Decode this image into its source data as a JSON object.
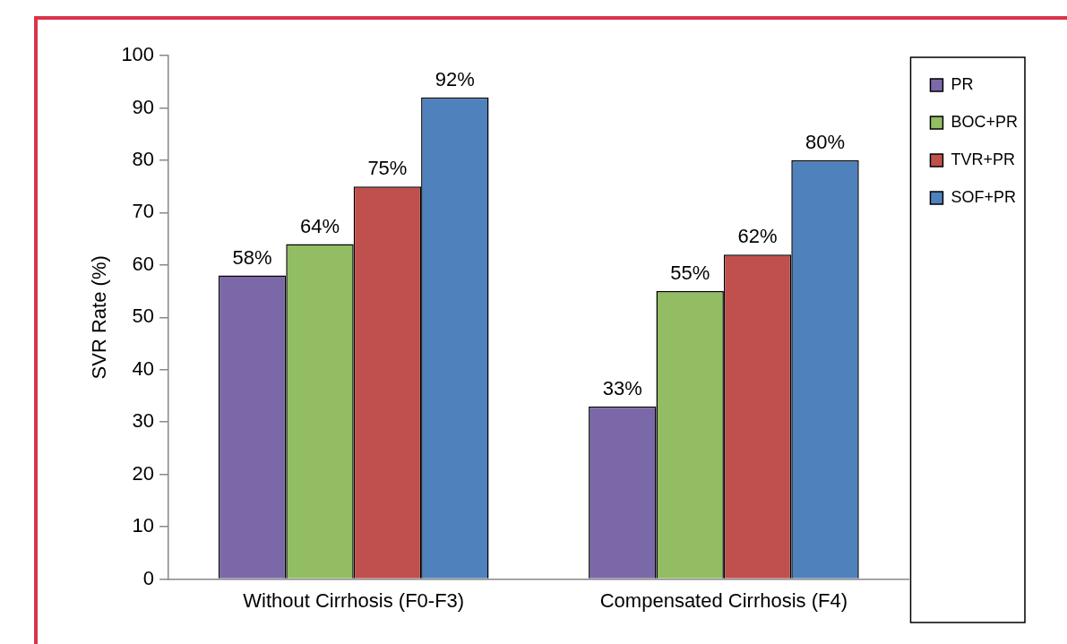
{
  "chart_data": {
    "type": "bar",
    "ylabel": "SVR Rate (%)",
    "categories": [
      "Without Cirrhosis (F0-F3)",
      "Compensated Cirrhosis (F4)"
    ],
    "series": [
      {
        "name": "PR",
        "color": "#7b68a8",
        "values": [
          58,
          33
        ],
        "value_labels": [
          "58%",
          "33%"
        ]
      },
      {
        "name": "BOC+PR",
        "color": "#92bd63",
        "values": [
          64,
          55
        ],
        "value_labels": [
          "64%",
          "55%"
        ]
      },
      {
        "name": "TVR+PR",
        "color": "#c0504d",
        "values": [
          75,
          62
        ],
        "value_labels": [
          "75%",
          "62%"
        ]
      },
      {
        "name": "SOF+PR",
        "color": "#4f81bd",
        "values": [
          92,
          80
        ],
        "value_labels": [
          "92%",
          "80%"
        ]
      }
    ],
    "ylim": [
      0,
      100
    ],
    "yticks": [
      0,
      10,
      20,
      30,
      40,
      50,
      60,
      70,
      80,
      90,
      100
    ],
    "grid": false,
    "legend": "top right"
  }
}
